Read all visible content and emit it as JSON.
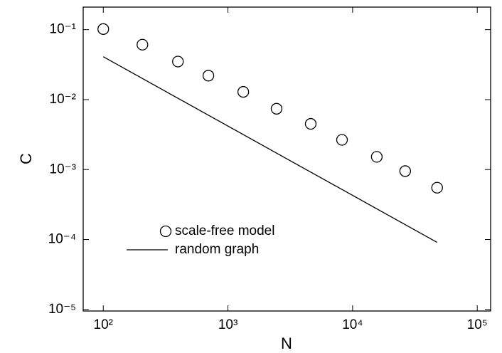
{
  "chart_data": {
    "type": "scatter",
    "x_label": "N",
    "y_label": "C",
    "log_x": true,
    "log_y": true,
    "xlim": [
      69,
      128000
    ],
    "ylim": [
      9.5e-06,
      0.21
    ],
    "xticks": [
      {
        "value": 100,
        "label": "10²"
      },
      {
        "value": 1000,
        "label": "10³"
      },
      {
        "value": 10000,
        "label": "10⁴"
      },
      {
        "value": 100000,
        "label": "10⁵"
      }
    ],
    "yticks": [
      {
        "value": 1e-05,
        "label": "10⁻⁵"
      },
      {
        "value": 0.0001,
        "label": "10⁻⁴"
      },
      {
        "value": 0.001,
        "label": "10⁻³"
      },
      {
        "value": 0.01,
        "label": "10⁻²"
      },
      {
        "value": 0.1,
        "label": "10⁻¹"
      }
    ],
    "legend": "lower left",
    "series": [
      {
        "name": "scale-free model",
        "type": "scatter",
        "color": "#000000",
        "x": [
          100,
          206,
          397,
          697,
          1327,
          2455,
          4613,
          8224,
          15630,
          26420,
          47640
        ],
        "values": [
          0.102,
          0.061,
          0.035,
          0.022,
          0.0129,
          0.0074,
          0.0045,
          0.00266,
          0.00152,
          0.00095,
          0.00055
        ]
      },
      {
        "name": "random graph",
        "type": "line",
        "color": "#000000",
        "x": [
          100,
          47640
        ],
        "values": [
          0.041,
          9.1e-05
        ]
      }
    ]
  }
}
